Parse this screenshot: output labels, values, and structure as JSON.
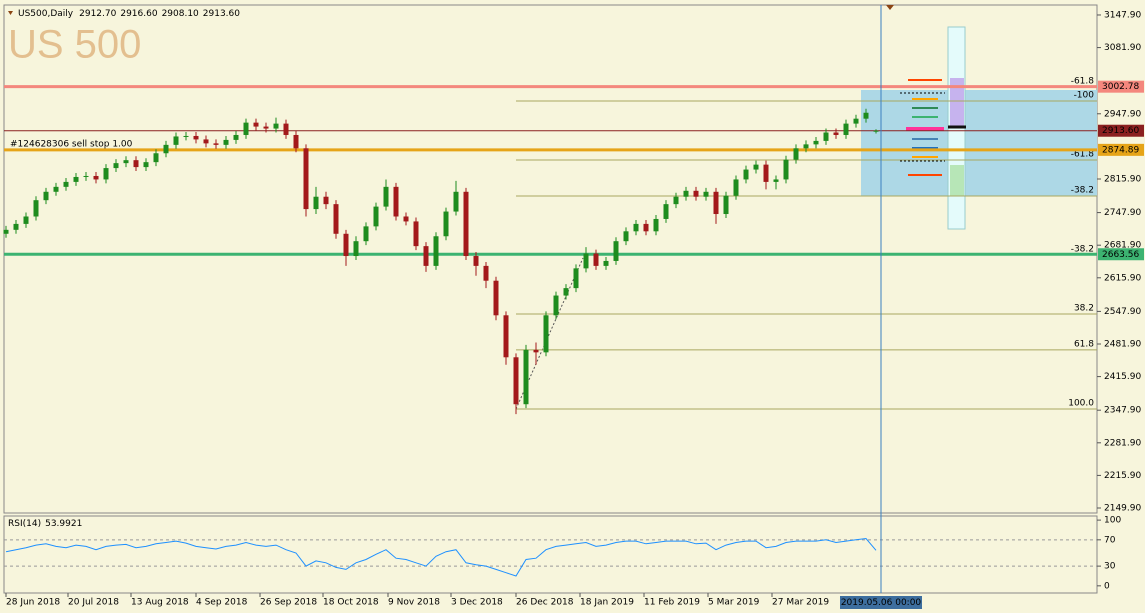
{
  "chart_data": {
    "type": "candlestick",
    "symbol": "US500,Daily",
    "header_values": [
      "2912.70",
      "2916.60",
      "2908.10",
      "2913.60"
    ],
    "watermark": "US 500",
    "up_color": "#1e8c1e",
    "down_color": "#a3191b",
    "ylim": [
      2139.8,
      3168.1
    ],
    "yticks": [
      {
        "value": 3147.9,
        "label": "3147.90"
      },
      {
        "value": 3081.9,
        "label": "3081.90"
      },
      {
        "value": 2947.9,
        "label": "2947.90"
      },
      {
        "value": 2815.9,
        "label": "2815.90"
      },
      {
        "value": 2747.9,
        "label": "2747.90"
      },
      {
        "value": 2681.9,
        "label": "2681.90"
      },
      {
        "value": 2615.9,
        "label": "2615.90"
      },
      {
        "value": 2547.9,
        "label": "2547.90"
      },
      {
        "value": 2481.9,
        "label": "2481.90"
      },
      {
        "value": 2415.9,
        "label": "2415.90"
      },
      {
        "value": 2347.9,
        "label": "2347.90"
      },
      {
        "value": 2281.9,
        "label": "2281.90"
      },
      {
        "value": 2215.9,
        "label": "2215.90"
      },
      {
        "value": 2149.9,
        "label": "2149.90"
      }
    ],
    "xlim": [
      -0.2,
      109.1
    ],
    "xticks": [
      {
        "value": 0,
        "label": "28 Jun 2018"
      },
      {
        "value": 6.2,
        "label": "20 Jul 2018"
      },
      {
        "value": 12.5,
        "label": "13 Aug 2018"
      },
      {
        "value": 19,
        "label": "4 Sep 2018"
      },
      {
        "value": 25.4,
        "label": "26 Sep 2018"
      },
      {
        "value": 31.7,
        "label": "18 Oct 2018"
      },
      {
        "value": 38.2,
        "label": "9 Nov 2018"
      },
      {
        "value": 44.5,
        "label": "3 Dec 2018"
      },
      {
        "value": 51,
        "label": "26 Dec 2018"
      },
      {
        "value": 57.4,
        "label": "18 Jan 2019"
      },
      {
        "value": 63.8,
        "label": "11 Feb 2019"
      },
      {
        "value": 70.2,
        "label": "5 Mar 2019"
      },
      {
        "value": 76.6,
        "label": "27 Mar 2019"
      }
    ],
    "cursor": {
      "value": 87.5,
      "label": "2019.05.06 00:00"
    },
    "candles": [
      [
        2705,
        2721,
        2697,
        2713
      ],
      [
        2713,
        2733,
        2705,
        2725
      ],
      [
        2725,
        2748,
        2717,
        2740
      ],
      [
        2740,
        2781,
        2732,
        2773
      ],
      [
        2773,
        2798,
        2765,
        2790
      ],
      [
        2790,
        2808,
        2782,
        2800
      ],
      [
        2800,
        2818,
        2792,
        2810
      ],
      [
        2810,
        2828,
        2802,
        2820
      ],
      [
        2820,
        2830,
        2812,
        2822
      ],
      [
        2822,
        2830,
        2807,
        2815
      ],
      [
        2815,
        2846,
        2807,
        2838
      ],
      [
        2838,
        2856,
        2830,
        2848
      ],
      [
        2848,
        2862,
        2840,
        2854
      ],
      [
        2854,
        2862,
        2832,
        2840
      ],
      [
        2840,
        2858,
        2832,
        2850
      ],
      [
        2850,
        2876,
        2842,
        2868
      ],
      [
        2868,
        2893,
        2860,
        2885
      ],
      [
        2885,
        2910,
        2877,
        2902
      ],
      [
        2902,
        2911,
        2894,
        2903
      ],
      [
        2903,
        2911,
        2888,
        2896
      ],
      [
        2896,
        2904,
        2880,
        2888
      ],
      [
        2888,
        2896,
        2877,
        2885
      ],
      [
        2885,
        2903,
        2877,
        2895
      ],
      [
        2895,
        2913,
        2887,
        2905
      ],
      [
        2905,
        2938,
        2897,
        2930
      ],
      [
        2930,
        2938,
        2914,
        2922
      ],
      [
        2922,
        2930,
        2910,
        2918
      ],
      [
        2918,
        2940,
        2910,
        2928
      ],
      [
        2928,
        2936,
        2897,
        2905
      ],
      [
        2905,
        2913,
        2870,
        2878
      ],
      [
        2878,
        2886,
        2740,
        2755
      ],
      [
        2755,
        2800,
        2745,
        2780
      ],
      [
        2780,
        2790,
        2755,
        2765
      ],
      [
        2765,
        2773,
        2695,
        2705
      ],
      [
        2705,
        2713,
        2640,
        2660
      ],
      [
        2660,
        2700,
        2652,
        2690
      ],
      [
        2690,
        2728,
        2682,
        2720
      ],
      [
        2720,
        2768,
        2712,
        2760
      ],
      [
        2760,
        2815,
        2752,
        2800
      ],
      [
        2800,
        2808,
        2732,
        2740
      ],
      [
        2740,
        2748,
        2722,
        2730
      ],
      [
        2730,
        2738,
        2672,
        2680
      ],
      [
        2680,
        2688,
        2628,
        2640
      ],
      [
        2640,
        2708,
        2632,
        2700
      ],
      [
        2700,
        2758,
        2692,
        2750
      ],
      [
        2750,
        2812,
        2742,
        2790
      ],
      [
        2790,
        2798,
        2652,
        2660
      ],
      [
        2660,
        2668,
        2620,
        2640
      ],
      [
        2640,
        2648,
        2595,
        2610
      ],
      [
        2610,
        2618,
        2530,
        2540
      ],
      [
        2540,
        2548,
        2440,
        2455
      ],
      [
        2455,
        2463,
        2340,
        2360
      ],
      [
        2360,
        2480,
        2352,
        2470
      ],
      [
        2470,
        2485,
        2440,
        2465
      ],
      [
        2465,
        2548,
        2457,
        2540
      ],
      [
        2540,
        2588,
        2532,
        2580
      ],
      [
        2580,
        2603,
        2572,
        2595
      ],
      [
        2595,
        2643,
        2587,
        2635
      ],
      [
        2635,
        2678,
        2627,
        2665
      ],
      [
        2665,
        2673,
        2632,
        2640
      ],
      [
        2640,
        2658,
        2632,
        2650
      ],
      [
        2650,
        2698,
        2642,
        2690
      ],
      [
        2690,
        2718,
        2682,
        2710
      ],
      [
        2710,
        2733,
        2702,
        2725
      ],
      [
        2725,
        2733,
        2702,
        2710
      ],
      [
        2710,
        2743,
        2702,
        2735
      ],
      [
        2735,
        2773,
        2727,
        2765
      ],
      [
        2765,
        2788,
        2757,
        2780
      ],
      [
        2780,
        2800,
        2772,
        2792
      ],
      [
        2792,
        2800,
        2772,
        2780
      ],
      [
        2780,
        2798,
        2772,
        2790
      ],
      [
        2790,
        2798,
        2725,
        2745
      ],
      [
        2745,
        2790,
        2737,
        2782
      ],
      [
        2782,
        2823,
        2774,
        2815
      ],
      [
        2815,
        2843,
        2807,
        2835
      ],
      [
        2835,
        2853,
        2827,
        2845
      ],
      [
        2845,
        2853,
        2795,
        2810
      ],
      [
        2810,
        2823,
        2795,
        2815
      ],
      [
        2815,
        2863,
        2807,
        2855
      ],
      [
        2855,
        2886,
        2847,
        2878
      ],
      [
        2878,
        2894,
        2870,
        2886
      ],
      [
        2886,
        2901,
        2878,
        2893
      ],
      [
        2893,
        2918,
        2885,
        2910
      ],
      [
        2910,
        2918,
        2897,
        2905
      ],
      [
        2905,
        2936,
        2897,
        2928
      ],
      [
        2928,
        2946,
        2920,
        2938
      ],
      [
        2938,
        2958,
        2930,
        2950
      ],
      [
        2912.7,
        2916.6,
        2908.1,
        2913.6
      ]
    ],
    "price_lines": [
      {
        "value": 3002.78,
        "label": "3002.78",
        "color": "#f4877d",
        "width": 3,
        "text_color": "#ffffff"
      },
      {
        "value": 2913.6,
        "label": "2913.60",
        "color": "#8b2020",
        "width": 1,
        "text_color": "#ffffff"
      },
      {
        "value": 2874.89,
        "label": "2874.89",
        "color": "#e6a418",
        "width": 3,
        "text_color": "#000000"
      },
      {
        "value": 2663.56,
        "label": "2663.56",
        "color": "#3cb371",
        "width": 3,
        "text_color": "#ffffff"
      }
    ],
    "order_label": "#124628306 sell stop 1.00",
    "fib_color": "#a8a860",
    "fib_levels": [
      {
        "label": "-61.8",
        "value": 3002.2
      },
      {
        "label": "-100",
        "value": 2973.8
      },
      {
        "label": "-61.8",
        "value": 2854.4
      },
      {
        "label": "-38.2",
        "value": 2781.6
      },
      {
        "label": "-38.2",
        "value": 2662.2
      },
      {
        "label": "38.2",
        "value": 2542.7
      },
      {
        "label": "61.8",
        "value": 2469.9
      },
      {
        "label": "100.0",
        "value": 2350.4
      }
    ],
    "rsi": {
      "title": "RSI(14)",
      "color": "#1e90ff",
      "ylim": [
        -10.9,
        106.25
      ],
      "yticks": [
        100,
        70,
        30,
        0
      ],
      "levels": [
        70,
        30
      ],
      "values": [
        52,
        55,
        58,
        62,
        64,
        60,
        58,
        62,
        60,
        55,
        60,
        62,
        63,
        58,
        60,
        64,
        66,
        68,
        65,
        60,
        58,
        56,
        60,
        62,
        66,
        62,
        60,
        62,
        55,
        50,
        30,
        38,
        35,
        28,
        25,
        35,
        40,
        48,
        55,
        42,
        40,
        35,
        30,
        45,
        52,
        55,
        35,
        32,
        30,
        25,
        20,
        15,
        40,
        42,
        55,
        60,
        62,
        64,
        66,
        60,
        62,
        66,
        68,
        68,
        64,
        66,
        68,
        68,
        68,
        64,
        65,
        55,
        62,
        66,
        68,
        68,
        58,
        60,
        66,
        68,
        68,
        68,
        70,
        66,
        68,
        70,
        72,
        53.9921
      ]
    }
  }
}
